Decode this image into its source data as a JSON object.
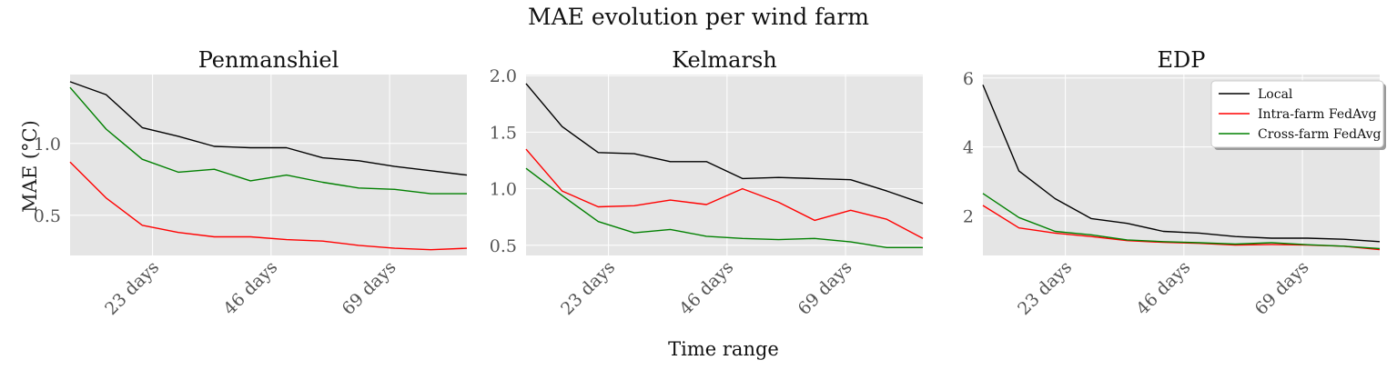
{
  "figure": {
    "suptitle": "MAE evolution per wind farm",
    "xlabel": "Time range",
    "ylabel": "MAE (°C)"
  },
  "colors": {
    "panel_bg": "#e5e5e5",
    "grid": "#ffffff",
    "tick_text": "#555555"
  },
  "chart_data": [
    {
      "type": "line",
      "title": "Penmanshiel",
      "xlabel": "Time range",
      "ylabel": "MAE (°C)",
      "x_unit": "days",
      "x": [
        7,
        14,
        21,
        28,
        35,
        42,
        49,
        56,
        63,
        70,
        77,
        84
      ],
      "xlim": [
        7,
        84
      ],
      "ylim": [
        0.22,
        1.48
      ],
      "xticks": [
        23,
        46,
        69
      ],
      "xtick_labels": [
        "23 days",
        "46 days",
        "69 days"
      ],
      "yticks": [
        0.5,
        1.0
      ],
      "ytick_labels": [
        "0.5",
        "1.0"
      ],
      "grid": true,
      "series": [
        {
          "name": "Local",
          "color": "#000000",
          "values": [
            1.43,
            1.34,
            1.11,
            1.05,
            0.98,
            0.97,
            0.97,
            0.9,
            0.88,
            0.84,
            0.81,
            0.78
          ]
        },
        {
          "name": "Intra-farm FedAvg",
          "color": "#ff0000",
          "values": [
            0.87,
            0.62,
            0.43,
            0.38,
            0.35,
            0.35,
            0.33,
            0.32,
            0.29,
            0.27,
            0.26,
            0.27
          ]
        },
        {
          "name": "Cross-farm FedAvg",
          "color": "#008000",
          "values": [
            1.39,
            1.1,
            0.89,
            0.8,
            0.82,
            0.74,
            0.78,
            0.73,
            0.69,
            0.68,
            0.65,
            0.65
          ]
        }
      ]
    },
    {
      "type": "line",
      "title": "Kelmarsh",
      "xlabel": "Time range",
      "x_unit": "days",
      "x": [
        7,
        14,
        21,
        28,
        35,
        42,
        49,
        56,
        63,
        70,
        77,
        84
      ],
      "xlim": [
        7,
        84
      ],
      "ylim": [
        0.41,
        2.01
      ],
      "xticks": [
        23,
        46,
        69
      ],
      "xtick_labels": [
        "23 days",
        "46 days",
        "69 days"
      ],
      "yticks": [
        0.5,
        1.0,
        1.5,
        2.0
      ],
      "ytick_labels": [
        "0.5",
        "1.0",
        "1.5",
        "2.0"
      ],
      "grid": true,
      "series": [
        {
          "name": "Local",
          "color": "#000000",
          "values": [
            1.93,
            1.55,
            1.32,
            1.31,
            1.24,
            1.24,
            1.09,
            1.1,
            1.09,
            1.08,
            0.98,
            0.87
          ]
        },
        {
          "name": "Intra-farm FedAvg",
          "color": "#ff0000",
          "values": [
            1.35,
            0.98,
            0.84,
            0.85,
            0.9,
            0.86,
            1.0,
            0.88,
            0.72,
            0.81,
            0.73,
            0.56
          ]
        },
        {
          "name": "Cross-farm FedAvg",
          "color": "#008000",
          "values": [
            1.18,
            0.94,
            0.71,
            0.61,
            0.64,
            0.58,
            0.56,
            0.55,
            0.56,
            0.53,
            0.48,
            0.48
          ]
        }
      ]
    },
    {
      "type": "line",
      "title": "EDP",
      "xlabel": "Time range",
      "x_unit": "days",
      "x": [
        7,
        14,
        21,
        28,
        35,
        42,
        49,
        56,
        63,
        70,
        77,
        84
      ],
      "xlim": [
        7,
        84
      ],
      "ylim": [
        0.85,
        6.1
      ],
      "xticks": [
        23,
        46,
        69
      ],
      "xtick_labels": [
        "23 days",
        "46 days",
        "69 days"
      ],
      "yticks": [
        2,
        4,
        6
      ],
      "ytick_labels": [
        "2",
        "4",
        "6"
      ],
      "grid": true,
      "legend": {
        "placement": "top-right",
        "entries": [
          "Local",
          "Intra-farm FedAvg",
          "Cross-farm FedAvg"
        ]
      },
      "series": [
        {
          "name": "Local",
          "color": "#000000",
          "values": [
            5.8,
            3.3,
            2.5,
            1.92,
            1.78,
            1.55,
            1.5,
            1.4,
            1.35,
            1.35,
            1.32,
            1.25
          ]
        },
        {
          "name": "Intra-farm FedAvg",
          "color": "#ff0000",
          "values": [
            2.3,
            1.65,
            1.5,
            1.4,
            1.28,
            1.23,
            1.2,
            1.15,
            1.17,
            1.15,
            1.12,
            1.02
          ]
        },
        {
          "name": "Cross-farm FedAvg",
          "color": "#008000",
          "values": [
            2.65,
            1.95,
            1.55,
            1.45,
            1.3,
            1.25,
            1.22,
            1.18,
            1.22,
            1.16,
            1.12,
            1.05
          ]
        }
      ]
    }
  ]
}
